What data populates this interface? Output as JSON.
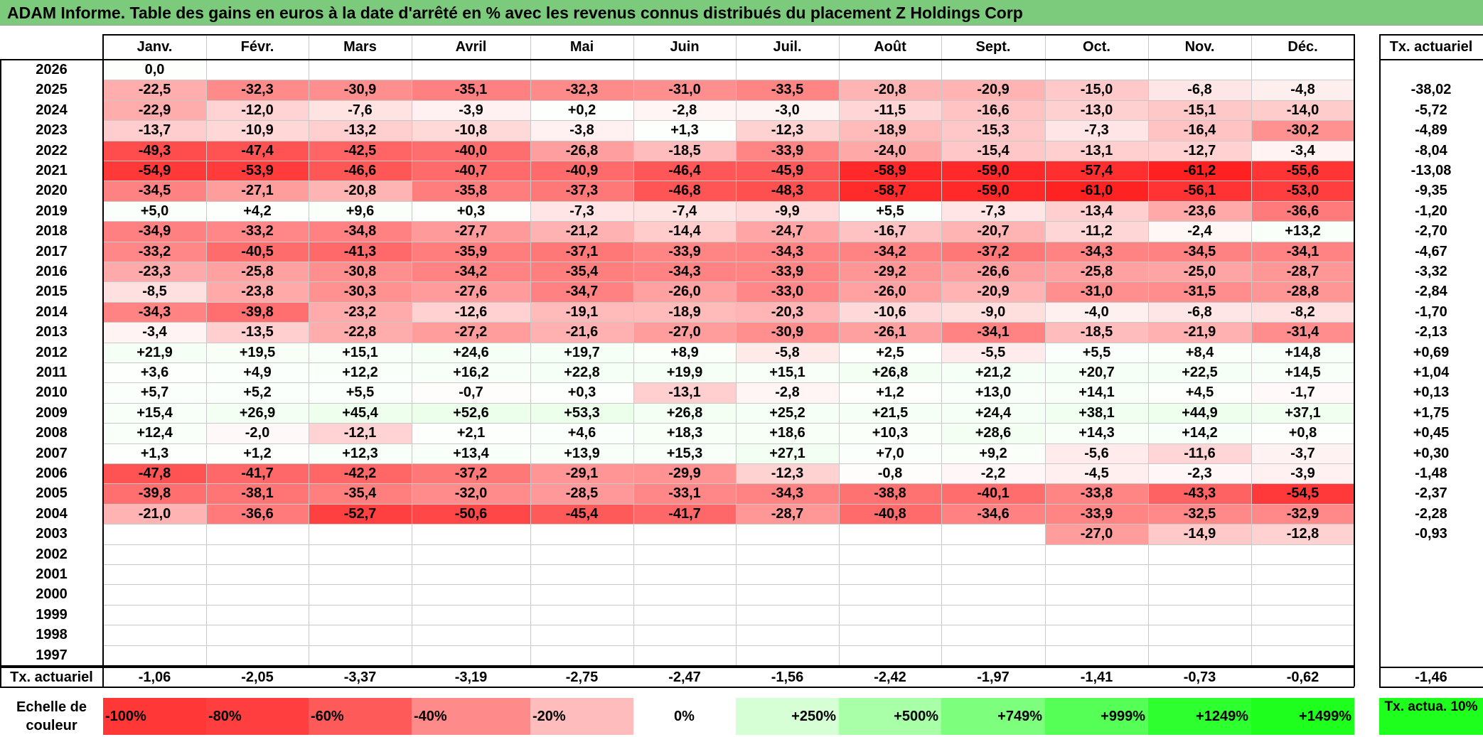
{
  "title": "ADAM Informe. Table des gains en euros à la date d'arrêté en % avec les revenus connus distribués du placement Z Holdings Corp",
  "months": [
    "Janv.",
    "Févr.",
    "Mars",
    "Avril",
    "Mai",
    "Juin",
    "Juil.",
    "Août",
    "Sept.",
    "Oct.",
    "Nov.",
    "Déc."
  ],
  "rate_header": "Tx. actuariel",
  "rows": [
    {
      "year": "2026",
      "values": [
        "0,0",
        "",
        "",
        "",
        "",
        "",
        "",
        "",
        "",
        "",
        "",
        ""
      ],
      "rate": ""
    },
    {
      "year": "2025",
      "values": [
        "-22,5",
        "-32,3",
        "-30,9",
        "-35,1",
        "-32,3",
        "-31,0",
        "-33,5",
        "-20,8",
        "-20,9",
        "-15,0",
        "-6,8",
        "-4,8"
      ],
      "rate": "-38,02"
    },
    {
      "year": "2024",
      "values": [
        "-22,9",
        "-12,0",
        "-7,6",
        "-3,9",
        "+0,2",
        "-2,8",
        "-3,0",
        "-11,5",
        "-16,6",
        "-13,0",
        "-15,1",
        "-14,0"
      ],
      "rate": "-5,72"
    },
    {
      "year": "2023",
      "values": [
        "-13,7",
        "-10,9",
        "-13,2",
        "-10,8",
        "-3,8",
        "+1,3",
        "-12,3",
        "-18,9",
        "-15,3",
        "-7,3",
        "-16,4",
        "-30,2"
      ],
      "rate": "-4,89"
    },
    {
      "year": "2022",
      "values": [
        "-49,3",
        "-47,4",
        "-42,5",
        "-40,0",
        "-26,8",
        "-18,5",
        "-33,9",
        "-24,0",
        "-15,4",
        "-13,1",
        "-12,7",
        "-3,4"
      ],
      "rate": "-8,04"
    },
    {
      "year": "2021",
      "values": [
        "-54,9",
        "-53,9",
        "-46,6",
        "-40,7",
        "-40,9",
        "-46,4",
        "-45,9",
        "-58,9",
        "-59,0",
        "-57,4",
        "-61,2",
        "-55,6"
      ],
      "rate": "-13,08"
    },
    {
      "year": "2020",
      "values": [
        "-34,5",
        "-27,1",
        "-20,8",
        "-35,8",
        "-37,3",
        "-46,8",
        "-48,3",
        "-58,7",
        "-59,0",
        "-61,0",
        "-56,1",
        "-53,0"
      ],
      "rate": "-9,35"
    },
    {
      "year": "2019",
      "values": [
        "+5,0",
        "+4,2",
        "+9,6",
        "+0,3",
        "-7,3",
        "-7,4",
        "-9,9",
        "+5,5",
        "-7,3",
        "-13,4",
        "-23,6",
        "-36,6"
      ],
      "rate": "-1,20"
    },
    {
      "year": "2018",
      "values": [
        "-34,9",
        "-33,2",
        "-34,8",
        "-27,7",
        "-21,2",
        "-14,4",
        "-24,7",
        "-16,7",
        "-20,7",
        "-11,2",
        "-2,4",
        "+13,2"
      ],
      "rate": "-2,70"
    },
    {
      "year": "2017",
      "values": [
        "-33,2",
        "-40,5",
        "-41,3",
        "-35,9",
        "-37,1",
        "-33,9",
        "-34,3",
        "-34,2",
        "-37,2",
        "-34,3",
        "-34,5",
        "-34,1"
      ],
      "rate": "-4,67"
    },
    {
      "year": "2016",
      "values": [
        "-23,3",
        "-25,8",
        "-30,8",
        "-34,2",
        "-35,4",
        "-34,3",
        "-33,9",
        "-29,2",
        "-26,6",
        "-25,8",
        "-25,0",
        "-28,7"
      ],
      "rate": "-3,32"
    },
    {
      "year": "2015",
      "values": [
        "-8,5",
        "-23,8",
        "-30,3",
        "-27,6",
        "-34,7",
        "-26,0",
        "-33,0",
        "-26,0",
        "-20,9",
        "-31,0",
        "-31,5",
        "-28,8"
      ],
      "rate": "-2,84"
    },
    {
      "year": "2014",
      "values": [
        "-34,3",
        "-39,8",
        "-23,2",
        "-12,6",
        "-19,1",
        "-18,9",
        "-20,3",
        "-10,6",
        "-9,0",
        "-4,0",
        "-6,8",
        "-8,2"
      ],
      "rate": "-1,70"
    },
    {
      "year": "2013",
      "values": [
        "-3,4",
        "-13,5",
        "-22,8",
        "-27,2",
        "-21,6",
        "-27,0",
        "-30,9",
        "-26,1",
        "-34,1",
        "-18,5",
        "-21,9",
        "-31,4"
      ],
      "rate": "-2,13"
    },
    {
      "year": "2012",
      "values": [
        "+21,9",
        "+19,5",
        "+15,1",
        "+24,6",
        "+19,7",
        "+8,9",
        "-5,8",
        "+2,5",
        "-5,5",
        "+5,5",
        "+8,4",
        "+14,8"
      ],
      "rate": "+0,69"
    },
    {
      "year": "2011",
      "values": [
        "+3,6",
        "+4,9",
        "+12,2",
        "+16,2",
        "+22,8",
        "+19,9",
        "+15,1",
        "+26,8",
        "+21,2",
        "+20,7",
        "+22,5",
        "+14,5"
      ],
      "rate": "+1,04"
    },
    {
      "year": "2010",
      "values": [
        "+5,7",
        "+5,2",
        "+5,5",
        "-0,7",
        "+0,3",
        "-13,1",
        "-2,8",
        "+1,2",
        "+13,0",
        "+14,1",
        "+4,5",
        "-1,7"
      ],
      "rate": "+0,13"
    },
    {
      "year": "2009",
      "values": [
        "+15,4",
        "+26,9",
        "+45,4",
        "+52,6",
        "+53,3",
        "+26,8",
        "+25,2",
        "+21,5",
        "+24,4",
        "+38,1",
        "+44,9",
        "+37,1"
      ],
      "rate": "+1,75"
    },
    {
      "year": "2008",
      "values": [
        "+12,4",
        "-2,0",
        "-12,1",
        "+2,1",
        "+4,6",
        "+18,3",
        "+18,6",
        "+10,3",
        "+28,6",
        "+14,3",
        "+14,2",
        "+0,8"
      ],
      "rate": "+0,45"
    },
    {
      "year": "2007",
      "values": [
        "+1,3",
        "+1,2",
        "+12,3",
        "+13,4",
        "+13,9",
        "+15,3",
        "+27,1",
        "+7,0",
        "+9,2",
        "-5,6",
        "-11,6",
        "-3,7"
      ],
      "rate": "+0,30"
    },
    {
      "year": "2006",
      "values": [
        "-47,8",
        "-41,7",
        "-42,2",
        "-37,2",
        "-29,1",
        "-29,9",
        "-12,3",
        "-0,8",
        "-2,2",
        "-4,5",
        "-2,3",
        "-3,9"
      ],
      "rate": "-1,48"
    },
    {
      "year": "2005",
      "values": [
        "-39,8",
        "-38,1",
        "-35,4",
        "-32,0",
        "-28,5",
        "-33,1",
        "-34,3",
        "-38,8",
        "-40,1",
        "-33,8",
        "-43,3",
        "-54,5"
      ],
      "rate": "-2,37"
    },
    {
      "year": "2004",
      "values": [
        "-21,0",
        "-36,6",
        "-52,7",
        "-50,6",
        "-45,4",
        "-41,7",
        "-28,7",
        "-40,8",
        "-34,6",
        "-33,9",
        "-32,5",
        "-32,9"
      ],
      "rate": "-2,28"
    },
    {
      "year": "2003",
      "values": [
        "",
        "",
        "",
        "",
        "",
        "",
        "",
        "",
        "",
        "-27,0",
        "-14,9",
        "-12,8"
      ],
      "rate": "-0,93"
    },
    {
      "year": "2002",
      "values": [
        "",
        "",
        "",
        "",
        "",
        "",
        "",
        "",
        "",
        "",
        "",
        ""
      ],
      "rate": ""
    },
    {
      "year": "2001",
      "values": [
        "",
        "",
        "",
        "",
        "",
        "",
        "",
        "",
        "",
        "",
        "",
        ""
      ],
      "rate": ""
    },
    {
      "year": "2000",
      "values": [
        "",
        "",
        "",
        "",
        "",
        "",
        "",
        "",
        "",
        "",
        "",
        ""
      ],
      "rate": ""
    },
    {
      "year": "1999",
      "values": [
        "",
        "",
        "",
        "",
        "",
        "",
        "",
        "",
        "",
        "",
        "",
        ""
      ],
      "rate": ""
    },
    {
      "year": "1998",
      "values": [
        "",
        "",
        "",
        "",
        "",
        "",
        "",
        "",
        "",
        "",
        "",
        ""
      ],
      "rate": ""
    },
    {
      "year": "1997",
      "values": [
        "",
        "",
        "",
        "",
        "",
        "",
        "",
        "",
        "",
        "",
        "",
        ""
      ],
      "rate": ""
    }
  ],
  "footer": {
    "label": "Tx. actuariel",
    "values": [
      "-1,06",
      "-2,05",
      "-3,37",
      "-3,19",
      "-2,75",
      "-2,47",
      "-1,56",
      "-2,42",
      "-1,97",
      "-1,41",
      "-0,73",
      "-0,62"
    ],
    "rate": "-1,46"
  },
  "legend": {
    "label": "Echelle de couleur",
    "steps": [
      {
        "label": "-100%",
        "color": "#ff3737"
      },
      {
        "label": "-80%",
        "color": "#ff3f3f"
      },
      {
        "label": "-60%",
        "color": "#ff5a5a"
      },
      {
        "label": "-40%",
        "color": "#ff8a8a"
      },
      {
        "label": "-20%",
        "color": "#ffbcbc"
      },
      {
        "label": "0%",
        "color": "#ffffff"
      },
      {
        "label": "+250%",
        "color": "#d6ffd6"
      },
      {
        "label": "+500%",
        "color": "#a8ffa8"
      },
      {
        "label": "+749%",
        "color": "#7dff7d"
      },
      {
        "label": "+999%",
        "color": "#55ff55"
      },
      {
        "label": "+1249%",
        "color": "#2eff2e"
      },
      {
        "label": "+1499%",
        "color": "#1eff1e"
      }
    ],
    "rate_label": "Tx. actua. 10%",
    "rate_color": "#1eff1e"
  },
  "colors": {
    "title_bg": "#7ccb7c",
    "neg_max": "#ff1e1e",
    "pos_tint": "#f2fbf2"
  }
}
